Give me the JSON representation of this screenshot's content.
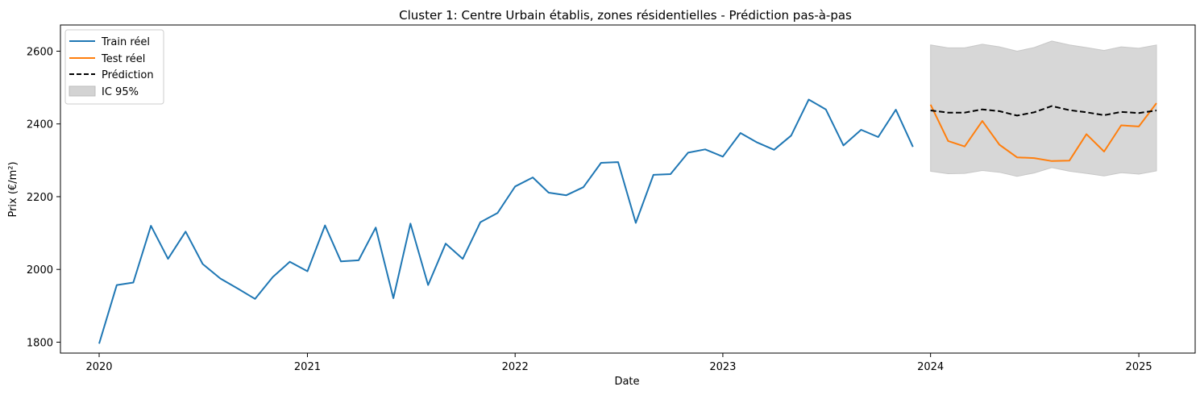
{
  "chart_data": {
    "type": "line",
    "title": "Cluster 1: Centre Urbain établis, zones résidentielles - Prédiction pas-à-pas",
    "xlabel": "Date",
    "ylabel": "Prix (€/m²)",
    "xlim": [
      "2019-10-25",
      "2025-04-10"
    ],
    "ylim": [
      1770,
      2672
    ],
    "xticks": [
      {
        "date": "2020-01-01",
        "label": "2020"
      },
      {
        "date": "2021-01-01",
        "label": "2021"
      },
      {
        "date": "2022-01-01",
        "label": "2022"
      },
      {
        "date": "2023-01-01",
        "label": "2023"
      },
      {
        "date": "2024-01-01",
        "label": "2024"
      },
      {
        "date": "2025-01-01",
        "label": "2025"
      }
    ],
    "yticks": [
      1800,
      2000,
      2200,
      2400,
      2600
    ],
    "legend_position": "top-left",
    "grid": false,
    "series": [
      {
        "name": "Train réel",
        "color": "#1f77b4",
        "style": "solid",
        "x": [
          "2020-01-01",
          "2020-02-01",
          "2020-03-01",
          "2020-04-01",
          "2020-05-01",
          "2020-06-01",
          "2020-07-01",
          "2020-08-01",
          "2020-09-01",
          "2020-10-01",
          "2020-11-01",
          "2020-12-01",
          "2021-01-01",
          "2021-02-01",
          "2021-03-01",
          "2021-04-01",
          "2021-05-01",
          "2021-06-01",
          "2021-07-01",
          "2021-08-01",
          "2021-09-01",
          "2021-10-01",
          "2021-11-01",
          "2021-12-01",
          "2022-01-01",
          "2022-02-01",
          "2022-03-01",
          "2022-04-01",
          "2022-05-01",
          "2022-06-01",
          "2022-07-01",
          "2022-08-01",
          "2022-09-01",
          "2022-10-01",
          "2022-11-01",
          "2022-12-01",
          "2023-01-01",
          "2023-02-01",
          "2023-03-01",
          "2023-04-01",
          "2023-05-01",
          "2023-06-01",
          "2023-07-01",
          "2023-08-01",
          "2023-09-01",
          "2023-10-01",
          "2023-11-01",
          "2023-12-01"
        ],
        "y": [
          1796,
          1957,
          1964,
          2120,
          2029,
          2104,
          2015,
          1975,
          1947,
          1919,
          1979,
          2021,
          1995,
          2121,
          2022,
          2025,
          2115,
          1921,
          2126,
          1957,
          2071,
          2029,
          2130,
          2155,
          2228,
          2253,
          2211,
          2204,
          2226,
          2293,
          2295,
          2128,
          2260,
          2262,
          2321,
          2330,
          2310,
          2375,
          2350,
          2329,
          2368,
          2467,
          2440,
          2341,
          2384,
          2364,
          2439,
          2337
        ]
      },
      {
        "name": "Test réel",
        "color": "#ff7f0e",
        "style": "solid",
        "x": [
          "2024-01-01",
          "2024-02-01",
          "2024-03-01",
          "2024-04-01",
          "2024-05-01",
          "2024-06-01",
          "2024-07-01",
          "2024-08-01",
          "2024-09-01",
          "2024-10-01",
          "2024-11-01",
          "2024-12-01",
          "2025-01-01",
          "2025-02-01"
        ],
        "y": [
          2453,
          2353,
          2338,
          2408,
          2343,
          2308,
          2306,
          2298,
          2299,
          2372,
          2324,
          2396,
          2393,
          2457
        ]
      },
      {
        "name": "Prédiction",
        "color": "#000000",
        "style": "dashed",
        "x": [
          "2024-01-01",
          "2024-02-01",
          "2024-03-01",
          "2024-04-01",
          "2024-05-01",
          "2024-06-01",
          "2024-07-01",
          "2024-08-01",
          "2024-09-01",
          "2024-10-01",
          "2024-11-01",
          "2024-12-01",
          "2025-01-01",
          "2025-02-01"
        ],
        "y": [
          2437,
          2431,
          2431,
          2440,
          2435,
          2423,
          2432,
          2449,
          2438,
          2432,
          2424,
          2433,
          2430,
          2437
        ]
      }
    ],
    "band": {
      "name": "IC 95%",
      "color": "#d3d3d3",
      "x": [
        "2024-01-01",
        "2024-02-01",
        "2024-03-01",
        "2024-04-01",
        "2024-05-01",
        "2024-06-01",
        "2024-07-01",
        "2024-08-01",
        "2024-09-01",
        "2024-10-01",
        "2024-11-01",
        "2024-12-01",
        "2025-01-01",
        "2025-02-01"
      ],
      "lower": [
        2270,
        2263,
        2264,
        2272,
        2267,
        2256,
        2265,
        2280,
        2270,
        2264,
        2257,
        2266,
        2262,
        2271
      ],
      "upper": [
        2617,
        2609,
        2609,
        2619,
        2612,
        2600,
        2610,
        2628,
        2617,
        2610,
        2602,
        2612,
        2608,
        2617
      ]
    }
  }
}
